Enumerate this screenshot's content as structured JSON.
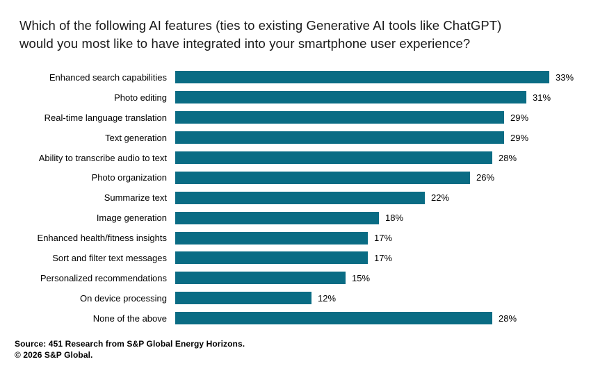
{
  "title": {
    "lines": [
      "Which of the following AI features (ties to existing Generative AI tools like ChatGPT)",
      "would you most like to have integrated into your smartphone user experience?"
    ]
  },
  "chart_data": {
    "type": "bar",
    "orientation": "horizontal",
    "title": "Which of the following AI features (ties to existing Generative AI tools like ChatGPT) would you most like to have integrated into your smartphone user experience?",
    "categories": [
      "Enhanced search capabilities",
      "Photo editing",
      "Real-time language translation",
      "Text generation",
      "Ability to transcribe audio to text",
      "Photo organization",
      "Summarize text",
      "Image generation",
      "Enhanced health/fitness insights",
      "Sort and filter text messages",
      "Personalized recommendations",
      "On device processing",
      "None of the above"
    ],
    "values": [
      33,
      31,
      29,
      29,
      28,
      26,
      22,
      18,
      17,
      17,
      15,
      12,
      28
    ],
    "value_suffix": "%",
    "xlabel": "",
    "ylabel": "",
    "xlim": [
      0,
      35
    ],
    "grid": false,
    "legend": false,
    "value_labels": "outside-end",
    "bar_color": "#0A6C84"
  },
  "source": {
    "line1": "Source: 451 Research from S&P Global Energy Horizons.",
    "line2": "© 2026 S&P Global."
  },
  "colors": {
    "bar": "#0A6C84",
    "text": "#000000",
    "title": "#1A1A1A",
    "background": "#FFFFFF"
  }
}
